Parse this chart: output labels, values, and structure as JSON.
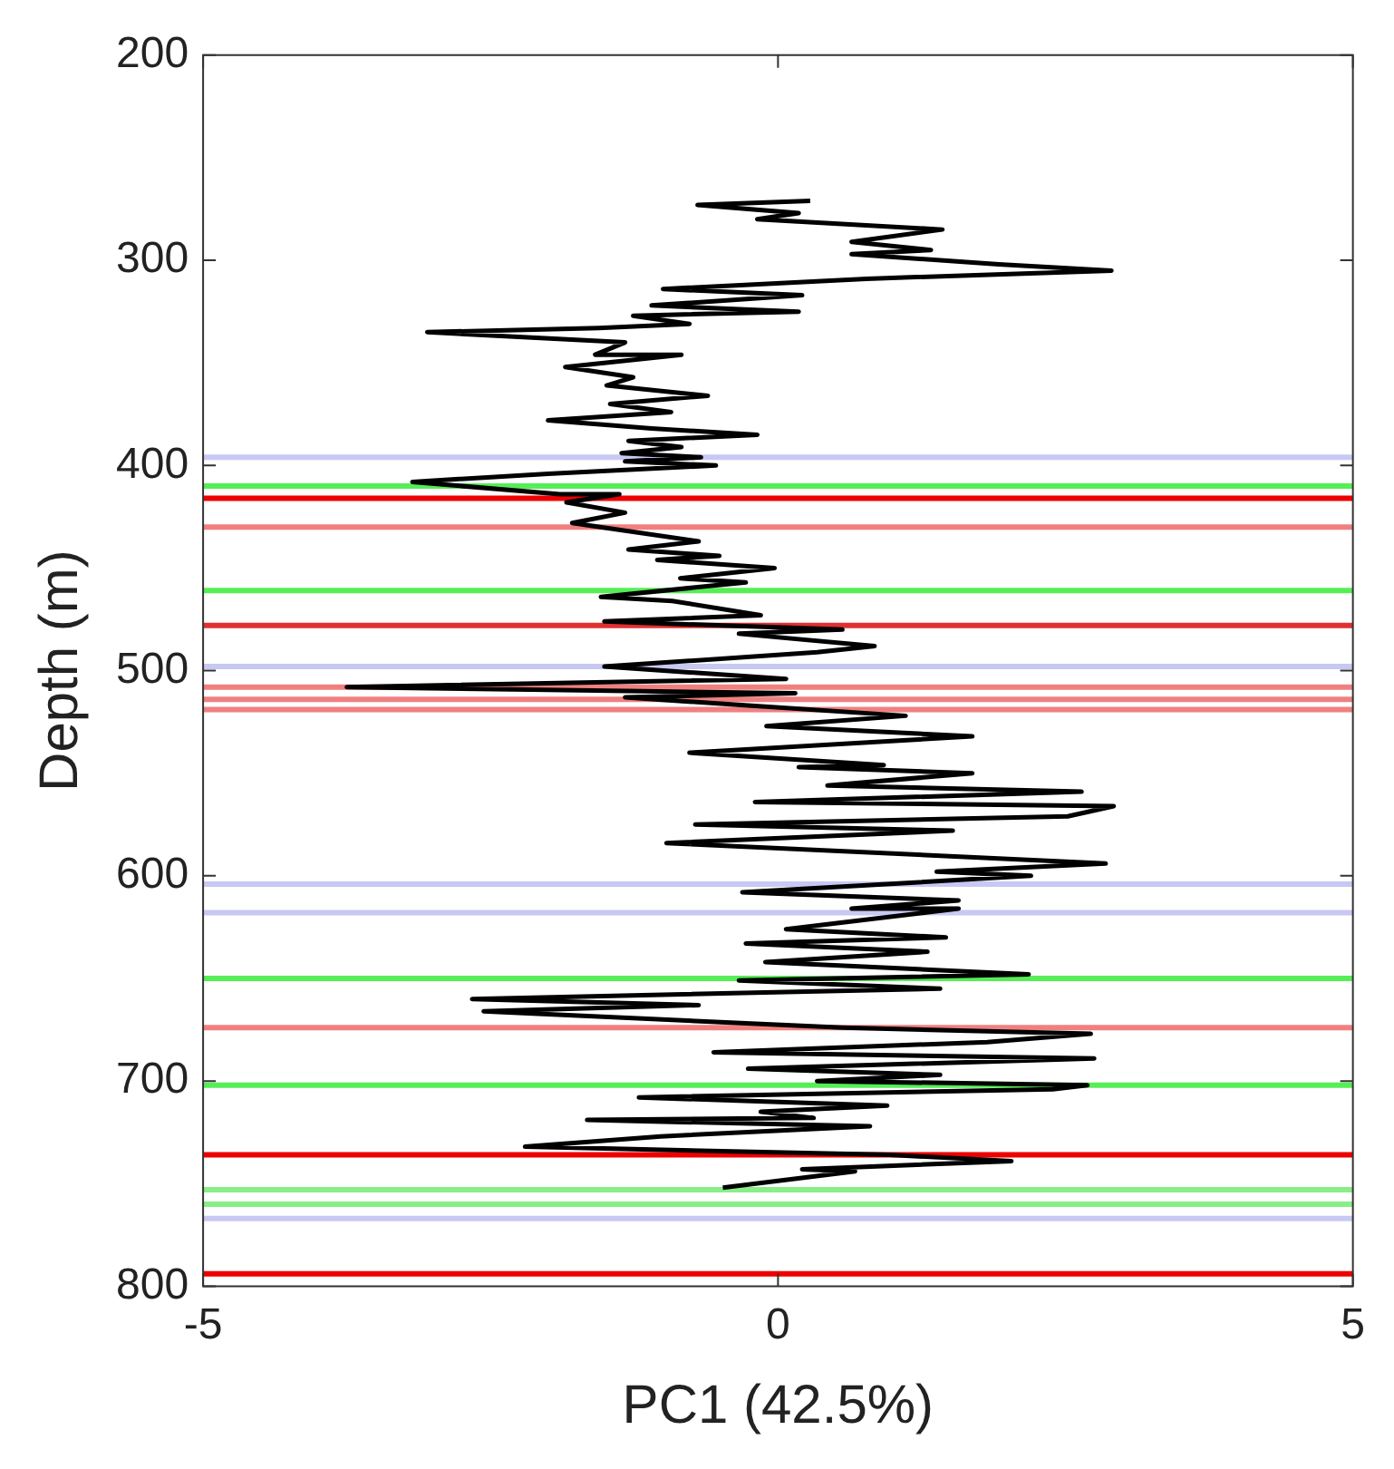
{
  "chart_data": {
    "type": "line",
    "xlabel": "PC1 (42.5%)",
    "ylabel": "Depth (m)",
    "xlim": [
      -5,
      5
    ],
    "xticks": [
      -5,
      0,
      5
    ],
    "ylim": [
      800,
      200
    ],
    "yticks": [
      200,
      300,
      400,
      500,
      600,
      700,
      800
    ],
    "grid": false,
    "legend": false,
    "marker": "none",
    "line_style": "solid",
    "series": [
      {
        "color": "#000000",
        "x": [
          0.28,
          -0.7,
          0.18,
          -0.18,
          1.43,
          0.64,
          1.33,
          0.64,
          1.92,
          2.9,
          0.77,
          -1.0,
          0.21,
          -1.1,
          0.18,
          -1.26,
          -0.77,
          -1.56,
          -3.05,
          -1.33,
          -1.59,
          -0.84,
          -1.85,
          -1.26,
          -1.49,
          -0.61,
          -1.46,
          -0.93,
          -2.0,
          -1.1,
          -0.18,
          -1.3,
          -0.84,
          -1.36,
          -0.67,
          -1.33,
          -0.54,
          -2.0,
          -3.18,
          -1.9,
          -1.38,
          -1.84,
          -1.33,
          -1.79,
          -0.69,
          -1.3,
          -0.51,
          -1.05,
          -0.03,
          -0.85,
          -0.28,
          -1.54,
          -0.92,
          -0.15,
          -1.51,
          0.56,
          -0.34,
          0.84,
          0.34,
          -1.51,
          0.07,
          -3.75,
          0.15,
          -1.33,
          -0.26,
          1.11,
          -0.1,
          1.69,
          -0.77,
          0.92,
          0.18,
          1.69,
          0.43,
          2.64,
          -0.2,
          2.92,
          2.52,
          -0.72,
          1.52,
          -0.97,
          2.85,
          1.38,
          2.2,
          -0.31,
          1.57,
          0.64,
          1.57,
          0.07,
          1.46,
          -0.28,
          1.3,
          -0.11,
          2.18,
          -0.34,
          1.41,
          -2.66,
          -0.69,
          -2.56,
          0.56,
          2.72,
          1.82,
          -0.56,
          2.75,
          -0.26,
          1.41,
          0.34,
          2.69,
          2.39,
          -1.21,
          0.95,
          -0.15,
          0.31,
          -1.66,
          0.8,
          -1.02,
          -2.2,
          0.97,
          2.03,
          0.21,
          0.67,
          -0.48
        ],
        "values": [
          271,
          273,
          277,
          280,
          285,
          291,
          295,
          297,
          302,
          305,
          309,
          314,
          317,
          322,
          325,
          327,
          331,
          333,
          335,
          340,
          346,
          346,
          352,
          357,
          361,
          366,
          370,
          374,
          378,
          382,
          385,
          388,
          391,
          394,
          396,
          398,
          400,
          404,
          408,
          414,
          414,
          418,
          423,
          428,
          437,
          441,
          444,
          446,
          450,
          455,
          457,
          464,
          466,
          473,
          476,
          480,
          482,
          488,
          491,
          498,
          504,
          508,
          511,
          513,
          517,
          522,
          527,
          532,
          540,
          546,
          547,
          550,
          556,
          559,
          564,
          566,
          571,
          575,
          578,
          584,
          594,
          598,
          600,
          608,
          612,
          616,
          616,
          626,
          630,
          633,
          637,
          642,
          648,
          651,
          655,
          660,
          663,
          666,
          674,
          677,
          681,
          686,
          689,
          694,
          697,
          700,
          702,
          704,
          708,
          712,
          715,
          718,
          719,
          722,
          727,
          732,
          736,
          739,
          743,
          744,
          752
        ]
      }
    ],
    "ref_lines": [
      {
        "axis": "y",
        "value": 396,
        "color": "#c8c8f5"
      },
      {
        "axis": "y",
        "value": 410,
        "color": "#55ee55"
      },
      {
        "axis": "y",
        "value": 416,
        "color": "#ee0000"
      },
      {
        "axis": "y",
        "value": 430,
        "color": "#f08080"
      },
      {
        "axis": "y",
        "value": 461,
        "color": "#55ee55"
      },
      {
        "axis": "y",
        "value": 478,
        "color": "#e03030"
      },
      {
        "axis": "y",
        "value": 498,
        "color": "#c8c8f5"
      },
      {
        "axis": "y",
        "value": 508,
        "color": "#f08080"
      },
      {
        "axis": "y",
        "value": 514,
        "color": "#f08080"
      },
      {
        "axis": "y",
        "value": 519,
        "color": "#f08080"
      },
      {
        "axis": "y",
        "value": 604,
        "color": "#c8c8f5"
      },
      {
        "axis": "y",
        "value": 618,
        "color": "#c8c8f5"
      },
      {
        "axis": "y",
        "value": 650,
        "color": "#55ee55"
      },
      {
        "axis": "y",
        "value": 674,
        "color": "#f08080"
      },
      {
        "axis": "y",
        "value": 702,
        "color": "#55ee55"
      },
      {
        "axis": "y",
        "value": 736,
        "color": "#ee0000"
      },
      {
        "axis": "y",
        "value": 753,
        "color": "#88ee88"
      },
      {
        "axis": "y",
        "value": 760,
        "color": "#88ee88"
      },
      {
        "axis": "y",
        "value": 767,
        "color": "#c8c8f5"
      },
      {
        "axis": "y",
        "value": 794,
        "color": "#ee0000"
      }
    ]
  }
}
